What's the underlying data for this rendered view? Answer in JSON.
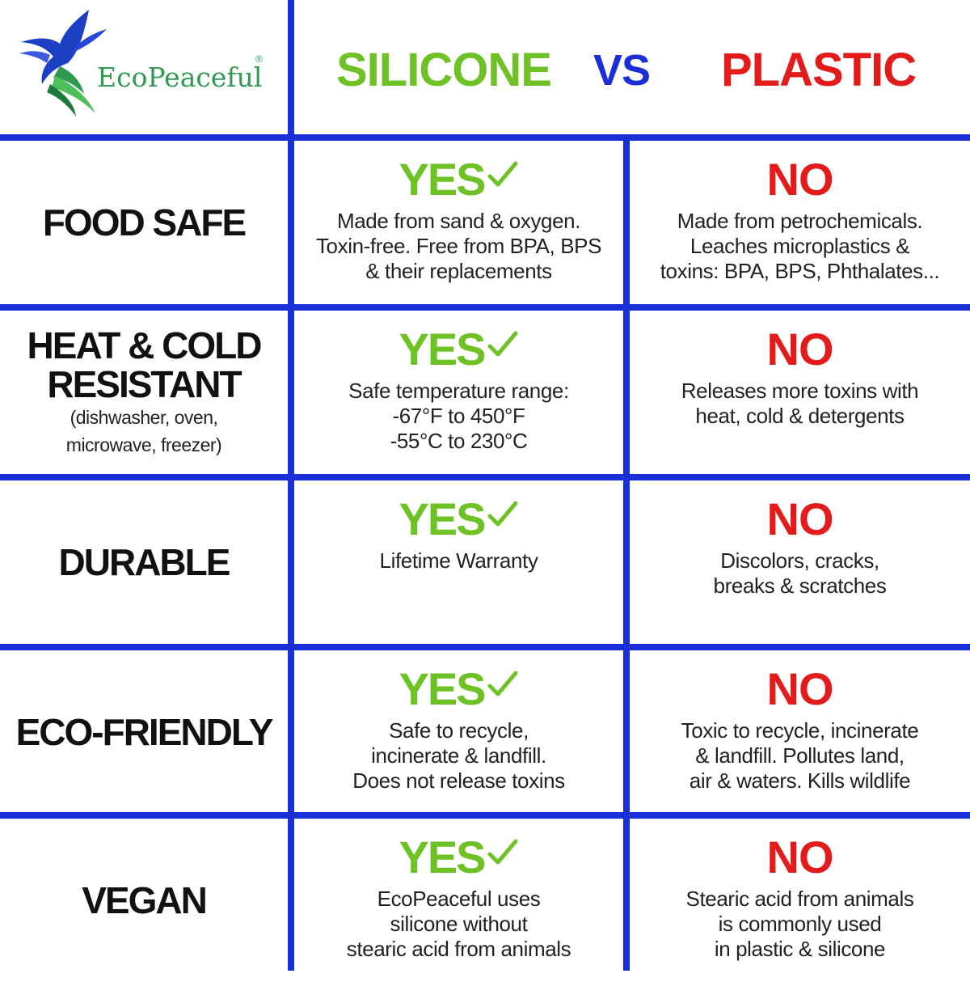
{
  "brand": {
    "name": "EcoPeaceful",
    "registered_mark": "®"
  },
  "header": {
    "silicone_label": "SILICONE",
    "vs_label": "VS",
    "plastic_label": "PLASTIC"
  },
  "colors": {
    "grid_blue": "#1b2fd6",
    "silicone_green": "#6ec225",
    "plastic_red": "#e31b1b",
    "vs_blue": "#1b2fd6",
    "logo_green": "#2f9a52"
  },
  "icons": {
    "yes_mark": "check-icon",
    "logo": "dove-icon"
  },
  "rows": [
    {
      "feature": [
        "FOOD SAFE"
      ],
      "feature_note": [],
      "silicone": {
        "verdict": "YES",
        "desc": [
          "Made from sand & oxygen.",
          "Toxin-free. Free from BPA, BPS",
          "& their replacements"
        ]
      },
      "plastic": {
        "verdict": "NO",
        "desc": [
          "Made from petrochemicals.",
          "Leaches microplastics &",
          "toxins: BPA, BPS, Phthalates..."
        ]
      }
    },
    {
      "feature": [
        "HEAT & COLD",
        "RESISTANT"
      ],
      "feature_note": [
        "(dishwasher, oven,",
        "microwave, freezer)"
      ],
      "silicone": {
        "verdict": "YES",
        "desc": [
          "Safe temperature range:",
          "-67°F to 450°F",
          "-55°C to 230°C"
        ]
      },
      "plastic": {
        "verdict": "NO",
        "desc": [
          "Releases more toxins with",
          "heat, cold & detergents"
        ]
      }
    },
    {
      "feature": [
        "DURABLE"
      ],
      "feature_note": [],
      "silicone": {
        "verdict": "YES",
        "desc": [
          "Lifetime Warranty"
        ]
      },
      "plastic": {
        "verdict": "NO",
        "desc": [
          "Discolors, cracks,",
          "breaks & scratches"
        ]
      }
    },
    {
      "feature": [
        "ECO-FRIENDLY"
      ],
      "feature_note": [],
      "silicone": {
        "verdict": "YES",
        "desc": [
          "Safe to recycle,",
          "incinerate & landfill.",
          "Does not release toxins"
        ]
      },
      "plastic": {
        "verdict": "NO",
        "desc": [
          "Toxic to recycle, incinerate",
          "& landfill. Pollutes land,",
          "air & waters. Kills wildlife"
        ]
      }
    },
    {
      "feature": [
        "VEGAN"
      ],
      "feature_note": [],
      "silicone": {
        "verdict": "YES",
        "desc": [
          "EcoPeaceful uses",
          "silicone without",
          "stearic acid from animals"
        ]
      },
      "plastic": {
        "verdict": "NO",
        "desc": [
          "Stearic acid from animals",
          "is commonly used",
          "in plastic & silicone"
        ]
      }
    }
  ]
}
